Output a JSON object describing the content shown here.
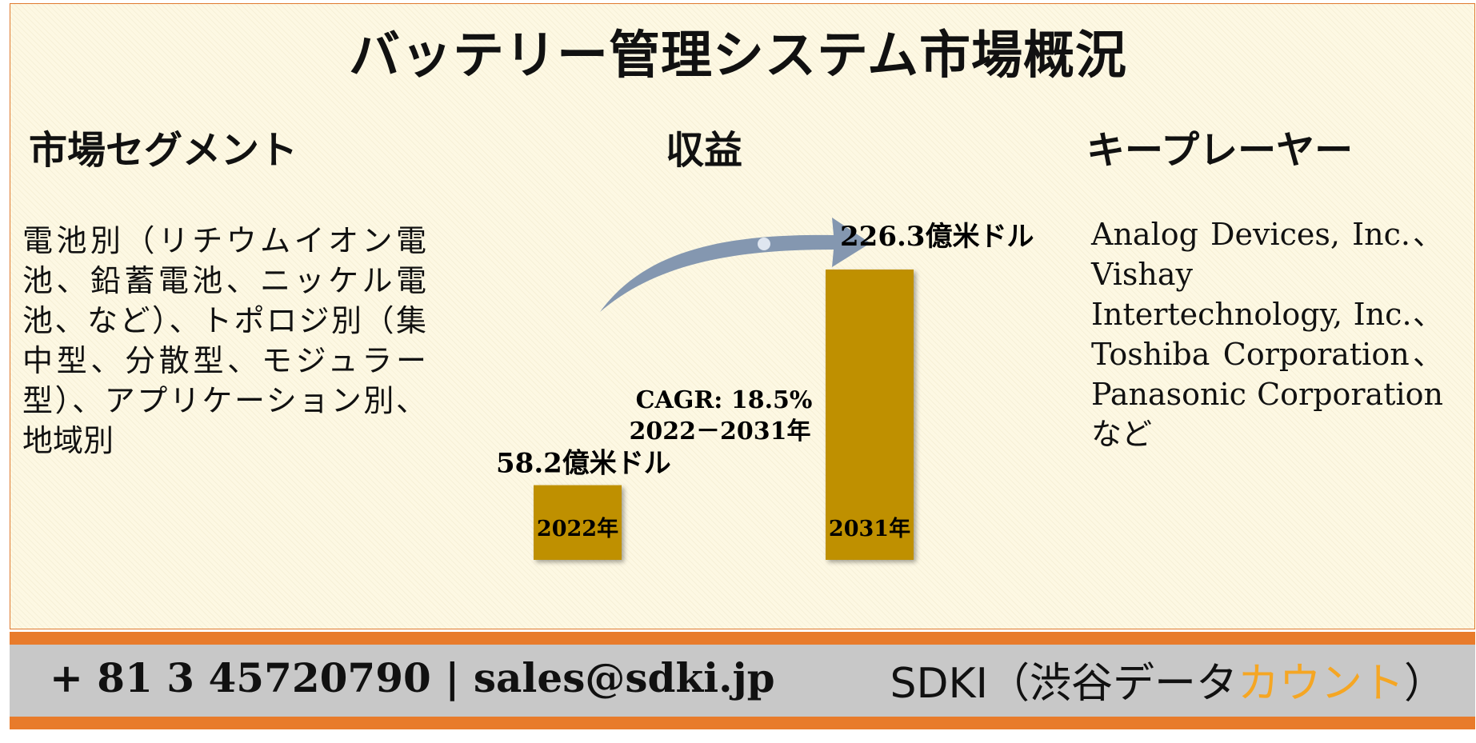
{
  "title": "バッテリー管理システム市場概況",
  "sections": {
    "segment": {
      "heading": "市場セグメント",
      "text": "電池別（リチウムイオン電池、鉛蓄電池、ニッケル電池、など）、トポロジ別（集中型、分散型、モジュラー型）、アプリケーション別、地域別"
    },
    "revenue": {
      "heading": "収益"
    },
    "players": {
      "heading": "キープレーヤー",
      "text": "Analog Devices, Inc.、Vishay Intertechnology, Inc.、Toshiba Corporation、Panasonic Corporation など"
    }
  },
  "chart_data": {
    "type": "bar",
    "categories": [
      "2022年",
      "2031年"
    ],
    "values": [
      58.2,
      226.3
    ],
    "value_labels": [
      "58.2億米ドル",
      "226.3億米ドル"
    ],
    "annotation_line1": "CAGR: 18.5%",
    "annotation_line2": "2022－2031年",
    "bar_color": "#bf9000",
    "arrow_color": "#8497b0"
  },
  "footer": {
    "phone": "+ 81 3 45720790",
    "separator": "|",
    "email": "sales@sdki.jp",
    "brand_main": "SDKI（渋谷データ",
    "brand_accent": "カウント",
    "brand_end": "）"
  }
}
